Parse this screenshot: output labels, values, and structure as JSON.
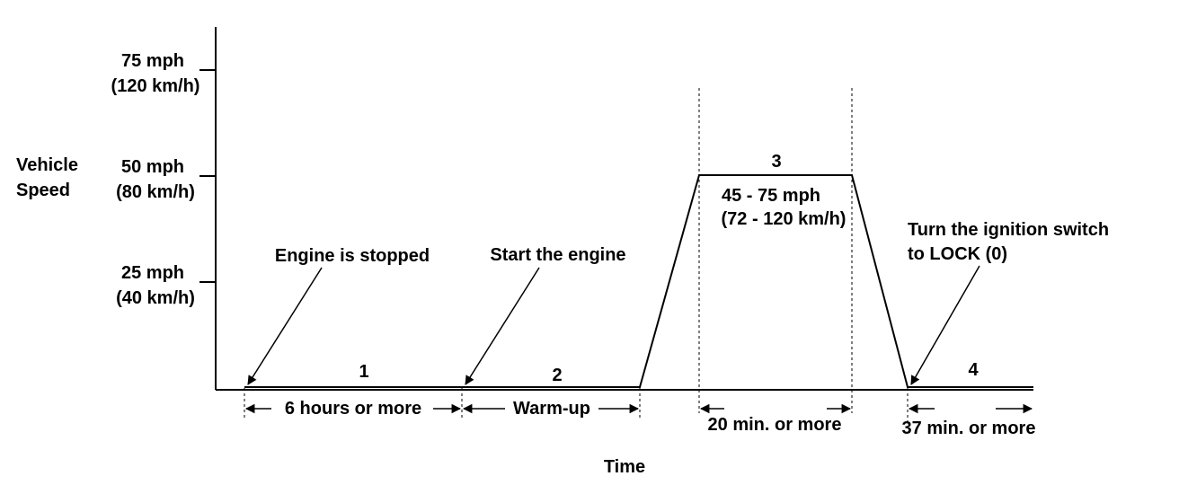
{
  "y_axis": {
    "label_line1": "Vehicle",
    "label_line2": "Speed",
    "ticks": [
      {
        "mph": "75 mph",
        "kmh": "(120 km/h)"
      },
      {
        "mph": "50 mph",
        "kmh": "(80 km/h)"
      },
      {
        "mph": "25 mph",
        "kmh": "(40 km/h)"
      }
    ]
  },
  "x_axis": {
    "label": "Time"
  },
  "phases": [
    {
      "number": "1",
      "duration": "6 hours or more"
    },
    {
      "number": "2",
      "duration": "Warm-up"
    },
    {
      "number": "3",
      "duration": "20 min. or more",
      "speed_line1": "45 - 75 mph",
      "speed_line2": "(72 - 120 km/h)"
    },
    {
      "number": "4",
      "duration": "37 min. or more"
    }
  ],
  "annotations": {
    "engine_stopped": "Engine is stopped",
    "start_engine": "Start the engine",
    "ignition_line1": "Turn the ignition switch",
    "ignition_line2": "to LOCK (0)"
  }
}
